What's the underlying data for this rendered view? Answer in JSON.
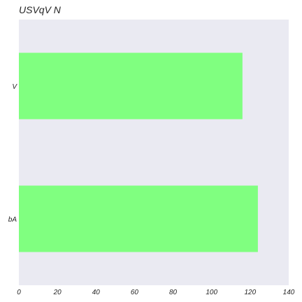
{
  "chart_data": {
    "type": "bar",
    "orientation": "horizontal",
    "title": "USVqV N",
    "xlabel": "",
    "ylabel": "",
    "categories": [
      "V",
      "bA"
    ],
    "values": [
      116,
      124
    ],
    "xlim": [
      0,
      140
    ],
    "xticks": [
      0,
      20,
      40,
      60,
      80,
      100,
      120,
      140
    ],
    "grid": false,
    "bar_color": "#80ff80",
    "plot_background": "#eaeaf2",
    "text_color": "#262626"
  }
}
